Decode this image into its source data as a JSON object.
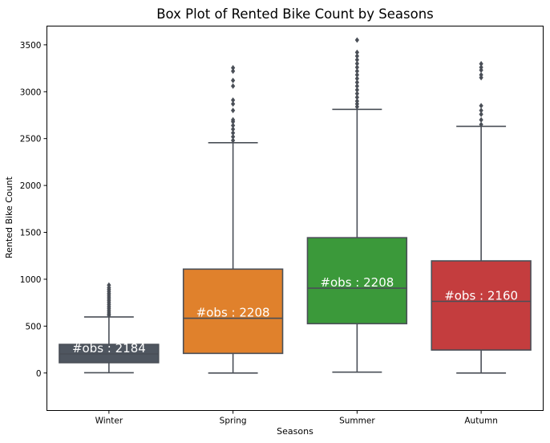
{
  "chart_data": {
    "type": "box",
    "title": "Box Plot of Rented Bike Count by Seasons",
    "xlabel": "Seasons",
    "ylabel": "Rented Bike Count",
    "ylim": [
      -400,
      3700
    ],
    "yticks": [
      0,
      500,
      1000,
      1500,
      2000,
      2500,
      3000,
      3500
    ],
    "ytick_labels": [
      "0",
      "500",
      "1000",
      "1500",
      "2000",
      "2500",
      "3000",
      "3500"
    ],
    "grid": false,
    "legend": "none",
    "categories": [
      "Winter",
      "Spring",
      "Summer",
      "Autumn"
    ],
    "boxes": [
      {
        "category": "Winter",
        "color": "#4f5660",
        "whisker_low": 3,
        "q1": 110,
        "median": 203,
        "q3": 305,
        "whisker_high": 598,
        "outliers": [
          615,
          630,
          650,
          670,
          690,
          710,
          730,
          750,
          770,
          790,
          810,
          830,
          850,
          870,
          890,
          910,
          937
        ],
        "label": "#obs : 2184"
      },
      {
        "category": "Spring",
        "color": "#e0812c",
        "whisker_low": 0,
        "q1": 209,
        "median": 584,
        "q3": 1108,
        "whisker_high": 2456,
        "outliers": [
          2480,
          2520,
          2560,
          2600,
          2640,
          2680,
          2700,
          2800,
          2870,
          2910,
          3060,
          3120,
          3220,
          3255
        ],
        "label": "#obs : 2208"
      },
      {
        "category": "Summer",
        "color": "#3b993a",
        "whisker_low": 9,
        "q1": 526,
        "median": 905,
        "q3": 1443,
        "whisker_high": 2811,
        "outliers": [
          2840,
          2870,
          2900,
          2940,
          2980,
          3020,
          3060,
          3100,
          3140,
          3180,
          3220,
          3260,
          3300,
          3340,
          3380,
          3420,
          3551
        ],
        "label": "#obs : 2208"
      },
      {
        "category": "Autumn",
        "color": "#c43d3e",
        "whisker_low": 0,
        "q1": 245,
        "median": 764,
        "q3": 1196,
        "whisker_high": 2631,
        "outliers": [
          2650,
          2700,
          2760,
          2800,
          2850,
          3150,
          3180,
          3230,
          3260,
          3298
        ],
        "label": "#obs : 2160"
      }
    ]
  }
}
